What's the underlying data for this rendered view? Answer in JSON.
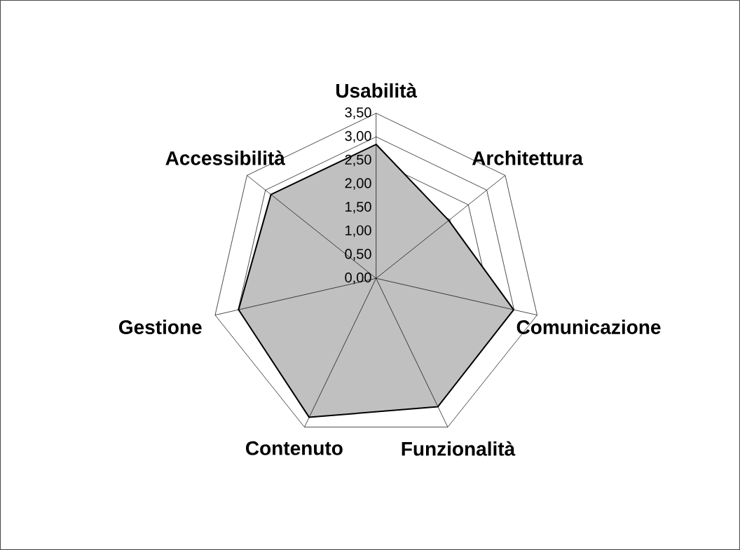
{
  "chart_data": {
    "type": "radar",
    "categories": [
      "Usabilità",
      "Architettura",
      "Comunicazione",
      "Funzionalità",
      "Contenuto",
      "Gestione",
      "Accessibilità"
    ],
    "series": [
      {
        "color": "#c0c0c0",
        "values": [
          2.84,
          1.97,
          2.99,
          3.02,
          3.27,
          2.99,
          2.85
        ]
      }
    ],
    "ylim": [
      0,
      3.5
    ],
    "yticks": [
      {
        "value": 0,
        "label": "0,00"
      },
      {
        "value": 0.5,
        "label": "0,50"
      },
      {
        "value": 1,
        "label": "1,00"
      },
      {
        "value": 1.5,
        "label": "1,50"
      },
      {
        "value": 2,
        "label": "2,00"
      },
      {
        "value": 2.5,
        "label": "2,50"
      },
      {
        "value": 3,
        "label": "3,00"
      },
      {
        "value": 3.5,
        "label": "3,50"
      }
    ],
    "grid": true
  }
}
